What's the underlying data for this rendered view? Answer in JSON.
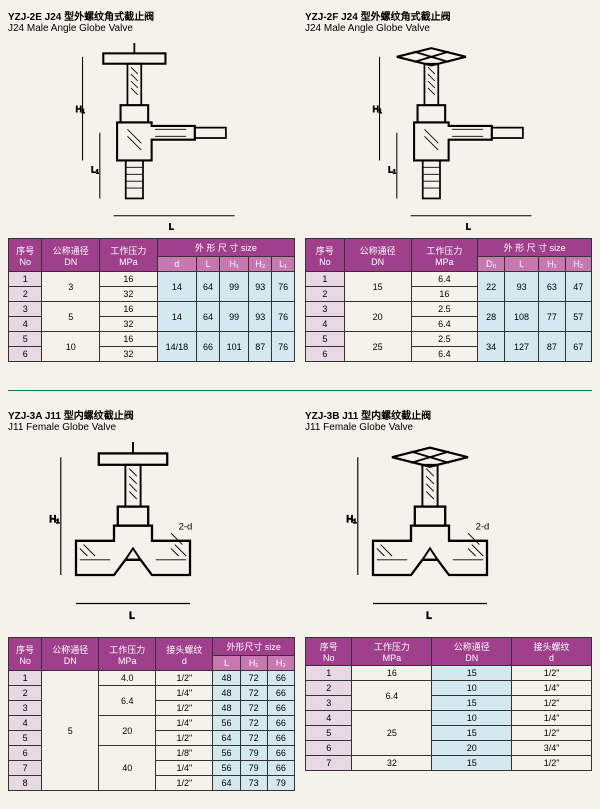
{
  "sections": [
    {
      "title_cn": "YZJ-2E J24 型外螺纹角式截止阀",
      "title_en": "J24 Male Angle Globe Valve",
      "diagram": "angle",
      "headers": {
        "no": "序号\nNo",
        "dn": "公称通径\nDN",
        "mpa": "工作压力\nMPa",
        "size": "外 形 尺 寸 size",
        "subs": [
          "d",
          "L",
          "H₁",
          "H₂",
          "L₁"
        ]
      },
      "rows": [
        {
          "no": "1",
          "dn": "3",
          "mpa": "16",
          "d": "14",
          "L": "64",
          "H1": "99",
          "H2": "93",
          "L1": "76",
          "span_dn": 2,
          "span_dims": 2
        },
        {
          "no": "2",
          "mpa": "32"
        },
        {
          "no": "3",
          "dn": "5",
          "mpa": "16",
          "d": "14",
          "L": "64",
          "H1": "99",
          "H2": "93",
          "L1": "76",
          "span_dn": 2,
          "span_dims": 2
        },
        {
          "no": "4",
          "mpa": "32"
        },
        {
          "no": "5",
          "dn": "10",
          "mpa": "16",
          "d": "14/18",
          "L": "66",
          "H1": "101",
          "H2": "87",
          "L1": "76",
          "span_dn": 2,
          "span_dims": 2
        },
        {
          "no": "6",
          "mpa": "32"
        }
      ]
    },
    {
      "title_cn": "YZJ-2F J24 型外螺纹角式截止阀",
      "title_en": "J24 Male Angle Globe Valve",
      "diagram": "angle2",
      "headers": {
        "no": "序号\nNo",
        "dn": "公称通径\nDN",
        "mpa": "工作压力\nMPa",
        "size": "外 形 尺 寸 size",
        "subs": [
          "D₀",
          "L",
          "H₁",
          "H₂"
        ]
      },
      "rows": [
        {
          "no": "1",
          "dn": "15",
          "mpa": "6.4",
          "d": "22",
          "L": "93",
          "H1": "63",
          "H2": "47",
          "span_dn": 2,
          "span_dims": 2
        },
        {
          "no": "2",
          "mpa": "16"
        },
        {
          "no": "3",
          "dn": "20",
          "mpa": "2.5",
          "d": "28",
          "L": "108",
          "H1": "77",
          "H2": "57",
          "span_dn": 2,
          "span_dims": 2
        },
        {
          "no": "4",
          "mpa": "6.4"
        },
        {
          "no": "5",
          "dn": "25",
          "mpa": "2.5",
          "d": "34",
          "L": "127",
          "H1": "87",
          "H2": "67",
          "span_dn": 2,
          "span_dims": 2
        },
        {
          "no": "6",
          "mpa": "6.4"
        }
      ]
    },
    {
      "title_cn": "YZJ-3A J11 型内螺纹截止阀",
      "title_en": "J11 Female Globe Valve",
      "diagram": "straight",
      "headers": {
        "no": "序号\nNo",
        "dn": "公称通径\nDN",
        "mpa": "工作压力\nMPa",
        "d_col": "接头螺纹\nd",
        "size": "外形尺寸 size",
        "subs": [
          "L",
          "H₁",
          "H₂"
        ]
      },
      "rows": [
        {
          "no": "1",
          "dn": "5",
          "mpa": "4.0",
          "d": "1/2\"",
          "L": "48",
          "H1": "72",
          "H2": "66",
          "span_dn": 8
        },
        {
          "no": "2",
          "mpa": "6.4",
          "d": "1/4\"",
          "L": "48",
          "H1": "72",
          "H2": "66",
          "span_mpa": 2
        },
        {
          "no": "3",
          "d": "1/2\"",
          "L": "48",
          "H1": "72",
          "H2": "66"
        },
        {
          "no": "4",
          "mpa": "20",
          "d": "1/4\"",
          "L": "56",
          "H1": "72",
          "H2": "66",
          "span_mpa": 2
        },
        {
          "no": "5",
          "d": "1/2\"",
          "L": "64",
          "H1": "72",
          "H2": "66"
        },
        {
          "no": "6",
          "mpa": "40",
          "d": "1/8\"",
          "L": "56",
          "H1": "79",
          "H2": "66",
          "span_mpa": 3
        },
        {
          "no": "7",
          "d": "1/4\"",
          "L": "56",
          "H1": "79",
          "H2": "66"
        },
        {
          "no": "8",
          "d": "1/2\"",
          "L": "64",
          "H1": "73",
          "H2": "79"
        }
      ]
    },
    {
      "title_cn": "YZJ-3B J11 型内螺纹截止阀",
      "title_en": "J11 Female Globe Valve",
      "diagram": "straight2",
      "headers": {
        "no": "序号\nNo",
        "mpa": "工作压力\nMPa",
        "dn": "公称通径\nDN",
        "d_col": "接头螺纹\nd"
      },
      "rows": [
        {
          "no": "1",
          "mpa": "16",
          "dn_v": "15",
          "d": "1/2\""
        },
        {
          "no": "2",
          "mpa": "6.4",
          "dn_v": "10",
          "d": "1/4\"",
          "span_mpa": 2
        },
        {
          "no": "3",
          "dn_v": "15",
          "d": "1/2\""
        },
        {
          "no": "4",
          "mpa": "25",
          "dn_v": "10",
          "d": "1/4\"",
          "span_mpa": 3
        },
        {
          "no": "5",
          "dn_v": "15",
          "d": "1/2\""
        },
        {
          "no": "6",
          "dn_v": "20",
          "d": "3/4\""
        },
        {
          "no": "7",
          "mpa": "32",
          "dn_v": "15",
          "d": "1/2\""
        }
      ]
    }
  ],
  "colors": {
    "header": "#a0408c",
    "subheader": "#c878b0",
    "idx": "#e8d8e4",
    "dim": "#d4e8f0"
  }
}
